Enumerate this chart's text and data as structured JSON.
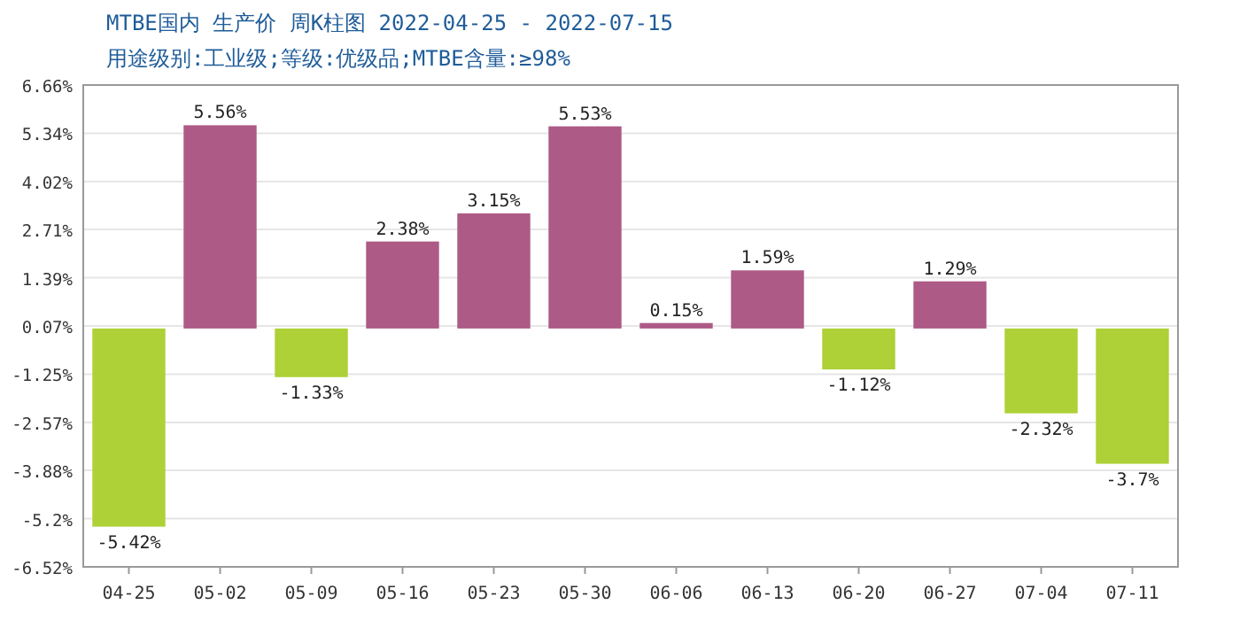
{
  "chart_data": {
    "type": "bar",
    "title": "MTBE国内 生产价 周K柱图 2022-04-25 - 2022-07-15",
    "subtitle": "用途级别:工业级;等级:优级品;MTBE含量:≥98%",
    "categories": [
      "04-25",
      "05-02",
      "05-09",
      "05-16",
      "05-23",
      "05-30",
      "06-06",
      "06-13",
      "06-20",
      "06-27",
      "07-04",
      "07-11"
    ],
    "values": [
      -5.42,
      5.56,
      -1.33,
      2.38,
      3.15,
      5.53,
      0.15,
      1.59,
      -1.12,
      1.29,
      -2.32,
      -3.7
    ],
    "colors": [
      "#add136",
      "#ad5a87",
      "#add136",
      "#ad5a87",
      "#ad5a87",
      "#ad5a87",
      "#ad5a87",
      "#ad5a87",
      "#add136",
      "#ad5a87",
      "#add136",
      "#add136"
    ],
    "value_labels": [
      "-5.42%",
      "5.56%",
      "-1.33%",
      "2.38%",
      "3.15%",
      "5.53%",
      "0.15%",
      "1.59%",
      "-1.12%",
      "1.29%",
      "-2.32%",
      "-3.7%"
    ],
    "ylim": [
      -6.52,
      6.66
    ],
    "yticks": [
      {
        "value": -6.52,
        "label": "-6.52%"
      },
      {
        "value": -5.2,
        "label": "-5.2%"
      },
      {
        "value": -3.88,
        "label": "-3.88%"
      },
      {
        "value": -2.57,
        "label": "-2.57%"
      },
      {
        "value": -1.25,
        "label": "-1.25%"
      },
      {
        "value": 0.07,
        "label": "0.07%"
      },
      {
        "value": 1.39,
        "label": "1.39%"
      },
      {
        "value": 2.71,
        "label": "2.71%"
      },
      {
        "value": 4.02,
        "label": "4.02%"
      },
      {
        "value": 5.34,
        "label": "5.34%"
      },
      {
        "value": 6.66,
        "label": "6.66%"
      }
    ],
    "grid": "y"
  }
}
